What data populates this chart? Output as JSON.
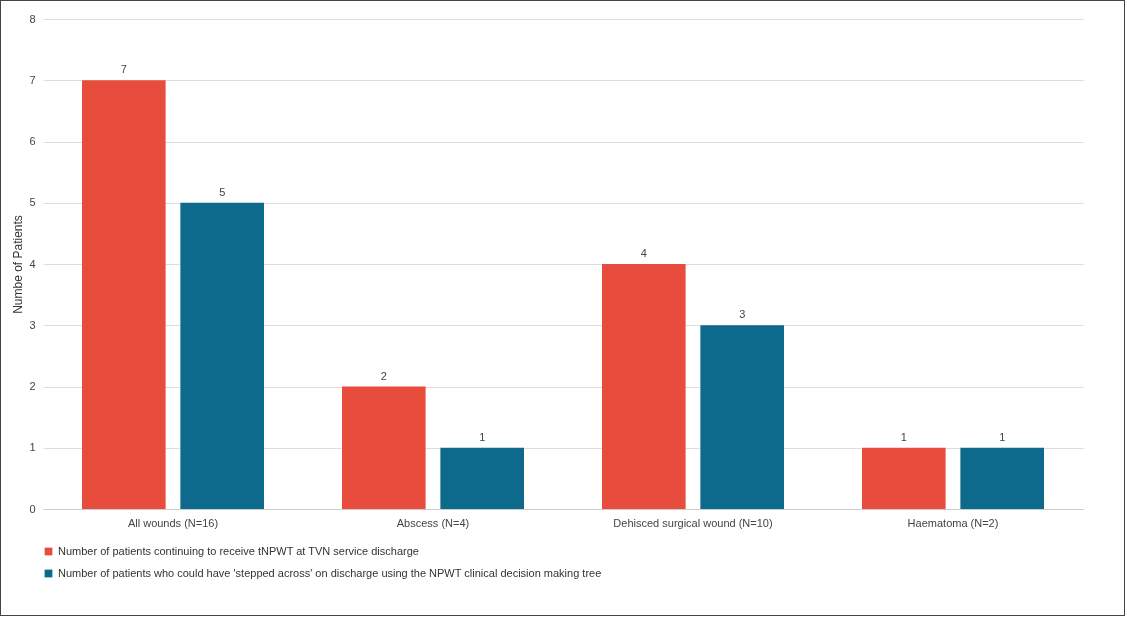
{
  "chart_data": {
    "type": "bar",
    "ylabel": "Numbe of Patients",
    "categories": [
      "All wounds (N=16)",
      "Abscess (N=4)",
      "Dehisced surgical wound (N=10)",
      "Haematoma (N=2)"
    ],
    "series": [
      {
        "name": "Number of patients continuing to receive tNPWT at TVN service discharge",
        "color": "#e84c3d",
        "values": [
          7,
          2,
          4,
          1
        ]
      },
      {
        "name": "Number of patients who could have 'stepped across' on discharge using the  NPWT clinical decision making tree",
        "color": "#0e6a8c",
        "values": [
          5,
          1,
          3,
          1
        ]
      }
    ],
    "ylim": [
      0,
      8
    ],
    "yticks": [
      0,
      1,
      2,
      3,
      4,
      5,
      6,
      7,
      8
    ],
    "grid": "y",
    "legend": "bottom",
    "data_labels": true
  }
}
